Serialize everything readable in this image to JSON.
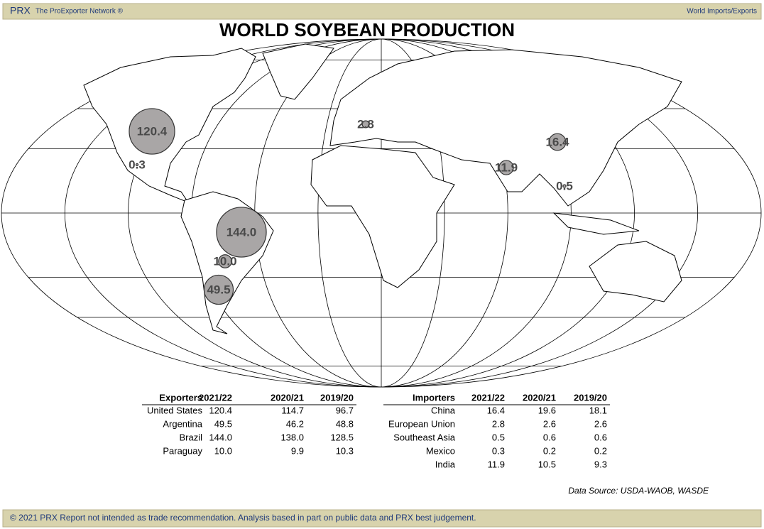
{
  "header": {
    "brand": "PRX",
    "network": "The ProExporter Network ®",
    "section": "World Imports/Exports"
  },
  "title": "WORLD SOYBEAN PRODUCTION",
  "exporters": {
    "columns": [
      "Exporters",
      "2021/22",
      "2020/21",
      "2019/20"
    ],
    "rows": [
      [
        "United States",
        "120.4",
        "114.7",
        "96.7"
      ],
      [
        "Argentina",
        "49.5",
        "46.2",
        "48.8"
      ],
      [
        "Brazil",
        "144.0",
        "138.0",
        "128.5"
      ],
      [
        "Paraguay",
        "10.0",
        "9.9",
        "10.3"
      ]
    ]
  },
  "importers": {
    "columns": [
      "Importers",
      "2021/22",
      "2020/21",
      "2019/20"
    ],
    "rows": [
      [
        "China",
        "16.4",
        "19.6",
        "18.1"
      ],
      [
        "European Union",
        "2.8",
        "2.6",
        "2.6"
      ],
      [
        "Southeast Asia",
        "0.5",
        "0.6",
        "0.6"
      ],
      [
        "Mexico",
        "0.3",
        "0.2",
        "0.2"
      ],
      [
        "India",
        "11.9",
        "10.5",
        "9.3"
      ]
    ]
  },
  "source": "Data Source: USDA-WAOB, WASDE",
  "footer": "© 2021 PRX  Report not intended as trade recommendation. Analysis based in part on public data and PRX best judgement."
}
